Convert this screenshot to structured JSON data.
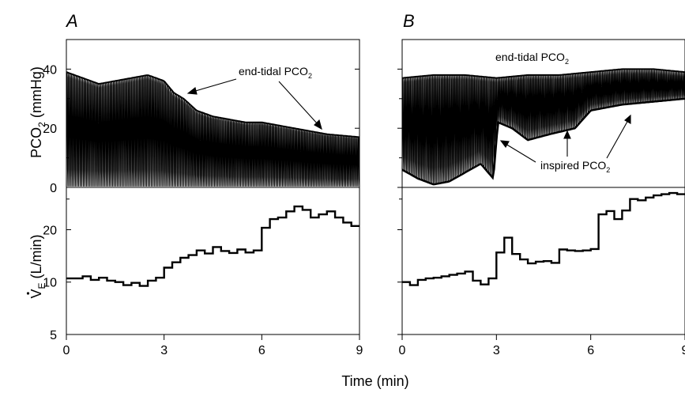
{
  "figure": {
    "xlabel": "Time (min)",
    "panels": [
      {
        "label": "A",
        "annotations": [
          {
            "kind": "end-tidal",
            "base": "end-tidal PCO",
            "sub": "2"
          }
        ]
      },
      {
        "label": "B",
        "annotations": [
          {
            "kind": "end-tidal",
            "base": "end-tidal PCO",
            "sub": "2"
          },
          {
            "kind": "inspired",
            "base": "inspired PCO",
            "sub": "2"
          }
        ]
      }
    ],
    "top_ylabel": {
      "base": "PCO",
      "sub": "2",
      "tail": " (mmHg)"
    },
    "bottom_ylabel": {
      "base": "V",
      "sub": "E",
      "tail": " (L/min)"
    }
  },
  "chart_data": [
    {
      "type": "line",
      "panel": "A-top",
      "ylabel": "PCO2 (mmHg)",
      "xlim": [
        0,
        9
      ],
      "ylim": [
        0,
        50
      ],
      "yticks": [
        0,
        20,
        40
      ],
      "ytick_labels": [
        "0",
        "20",
        "40"
      ],
      "series": [
        {
          "name": "end-tidal PCO2",
          "x": [
            0,
            0.5,
            1,
            1.5,
            2,
            2.5,
            3,
            3.3,
            3.6,
            4,
            4.5,
            5,
            5.5,
            6,
            6.5,
            7,
            7.5,
            8,
            8.5,
            9
          ],
          "values": [
            39,
            37,
            35,
            36,
            37,
            38,
            36,
            32,
            30,
            26,
            24,
            23,
            22,
            22,
            21,
            20,
            19,
            18,
            17.5,
            17
          ]
        }
      ]
    },
    {
      "type": "line",
      "panel": "B-top",
      "xlim": [
        0,
        9
      ],
      "ylim": [
        0,
        50
      ],
      "series": [
        {
          "name": "end-tidal PCO2",
          "x": [
            0,
            1,
            2,
            3,
            4,
            5,
            6,
            7,
            8,
            9
          ],
          "values": [
            37,
            38,
            38,
            37,
            38,
            38,
            39,
            40,
            40,
            39
          ]
        },
        {
          "name": "inspired PCO2",
          "x": [
            0,
            0.5,
            1,
            1.5,
            2,
            2.5,
            2.9,
            3.05,
            3.5,
            4,
            4.7,
            5.5,
            6,
            6.5,
            7,
            8,
            9
          ],
          "values": [
            6,
            3,
            1,
            2,
            5,
            8,
            3,
            22,
            20,
            16,
            18,
            20,
            26,
            27,
            28,
            29,
            30
          ]
        }
      ]
    },
    {
      "type": "line",
      "panel": "A-bottom",
      "ylabel": "VE (L/min)",
      "xlim": [
        0,
        9
      ],
      "yscale": "log",
      "ylim": [
        5,
        35
      ],
      "yticks": [
        5,
        10,
        20
      ],
      "ytick_labels": [
        "5",
        "10",
        "20"
      ],
      "xticks": [
        0,
        3,
        6,
        9
      ],
      "xtick_labels": [
        "0",
        "3",
        "6",
        "9"
      ],
      "series": [
        {
          "name": "VE",
          "x": [
            0,
            0.25,
            0.5,
            0.75,
            1,
            1.25,
            1.5,
            1.75,
            2,
            2.25,
            2.5,
            2.75,
            3,
            3.25,
            3.5,
            3.75,
            4,
            4.25,
            4.5,
            4.75,
            5,
            5.25,
            5.5,
            5.75,
            6,
            6.25,
            6.5,
            6.75,
            7,
            7.25,
            7.5,
            7.75,
            8,
            8.25,
            8.5,
            8.75
          ],
          "values": [
            10.5,
            10.5,
            10.8,
            10.3,
            10.6,
            10.2,
            10.0,
            9.6,
            9.9,
            9.5,
            10.2,
            10.6,
            12.1,
            13.0,
            13.8,
            14.3,
            15.2,
            14.6,
            15.9,
            15.1,
            14.7,
            15.4,
            14.8,
            15.2,
            20.5,
            23.0,
            23.5,
            25.5,
            27.2,
            26.0,
            23.5,
            24.5,
            25.5,
            23.5,
            22.0,
            21.0
          ]
        }
      ]
    },
    {
      "type": "line",
      "panel": "B-bottom",
      "xlim": [
        0,
        9
      ],
      "yscale": "log",
      "ylim": [
        5,
        35
      ],
      "xticks": [
        0,
        3,
        6,
        9
      ],
      "xtick_labels": [
        "0",
        "3",
        "6",
        "9"
      ],
      "series": [
        {
          "name": "VE",
          "x": [
            0,
            0.25,
            0.5,
            0.75,
            1,
            1.25,
            1.5,
            1.75,
            2,
            2.25,
            2.5,
            2.75,
            3,
            3.25,
            3.5,
            3.75,
            4,
            4.25,
            4.5,
            4.75,
            5,
            5.25,
            5.5,
            5.75,
            6,
            6.25,
            6.5,
            6.75,
            7,
            7.25,
            7.5,
            7.75,
            8,
            8.25,
            8.5,
            8.75
          ],
          "values": [
            10.0,
            9.6,
            10.3,
            10.5,
            10.6,
            10.8,
            11.0,
            11.2,
            11.5,
            10.2,
            9.7,
            10.5,
            14.8,
            18.0,
            14.5,
            13.5,
            12.8,
            13.1,
            13.2,
            12.9,
            15.4,
            15.2,
            15.1,
            15.2,
            15.5,
            24.5,
            25.6,
            23.0,
            25.8,
            30.0,
            29.5,
            30.6,
            31.5,
            32.0,
            32.5,
            32.0
          ]
        }
      ]
    }
  ]
}
